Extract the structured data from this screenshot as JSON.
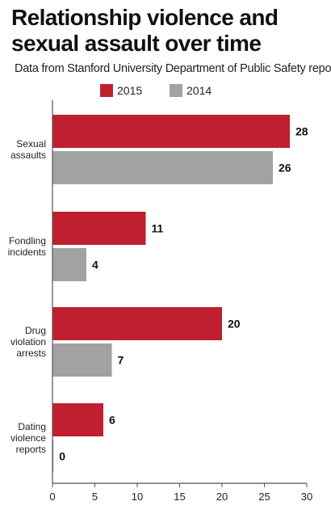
{
  "title": "Relationship violence and sexual assault over time",
  "subtitle": "Data from Stanford University Department of Public Safety reports",
  "chart_data": {
    "type": "bar",
    "orientation": "horizontal",
    "title": "Relationship violence and sexual assault over time",
    "subtitle": "Data from Stanford University Department of Public Safety reports",
    "categories": [
      [
        "Sexual",
        "assaults"
      ],
      [
        "Fondling",
        "incidents"
      ],
      [
        "Drug",
        "violation",
        "arrests"
      ],
      [
        "Dating",
        "violence",
        "reports"
      ]
    ],
    "series": [
      {
        "name": "2015",
        "values": [
          28,
          11,
          20,
          6
        ],
        "color": "#c01f2f"
      },
      {
        "name": "2014",
        "values": [
          26,
          4,
          7,
          0
        ],
        "color": "#a2a2a2"
      }
    ],
    "xlim": [
      0,
      30
    ],
    "xticks": [
      0,
      5,
      10,
      15,
      20,
      25,
      30
    ],
    "grid": false,
    "legend_position": "top",
    "data_labels": true
  }
}
